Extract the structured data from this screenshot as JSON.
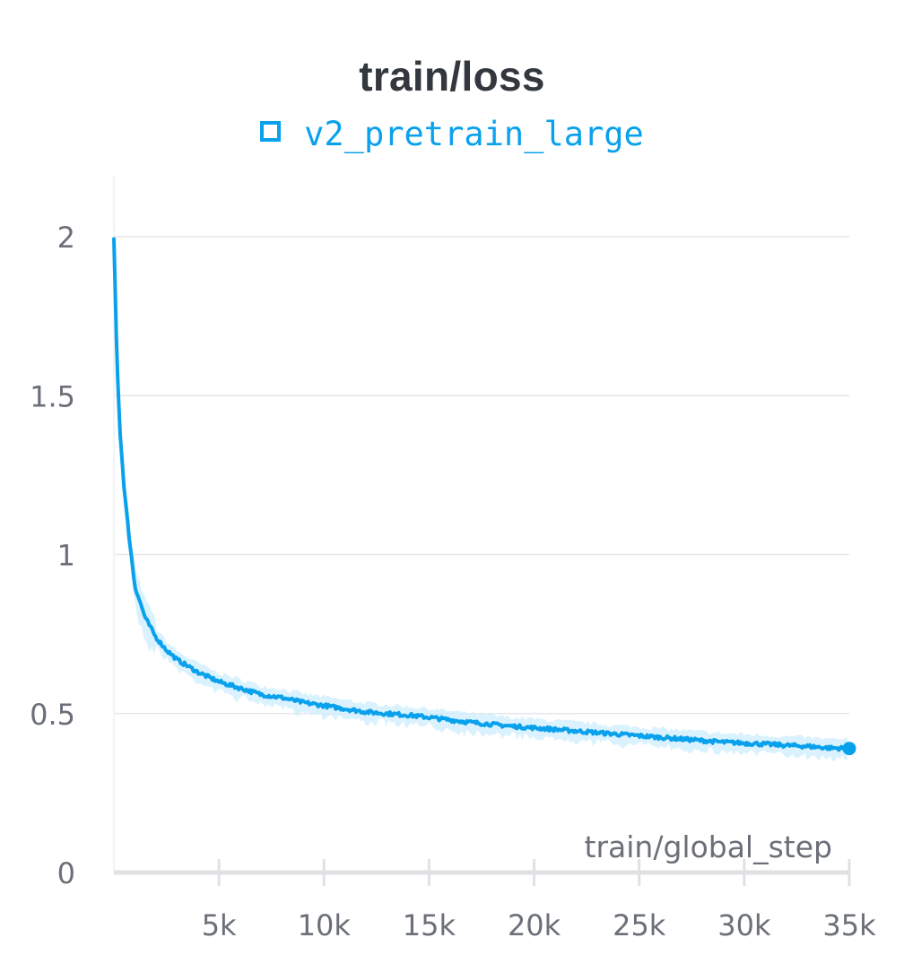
{
  "colors": {
    "series": "#0aa1ec",
    "series_band": "#cdeefc",
    "grid": "#e6e7ea",
    "axis": "#e0e1e4",
    "text": "#6b6f78",
    "title": "#33373e"
  },
  "chart_data": {
    "type": "line",
    "title": "train/loss",
    "xlabel": "train/global_step",
    "ylabel": "",
    "xlim": [
      0,
      35000
    ],
    "ylim": [
      0,
      2.2
    ],
    "x_ticks": [
      5000,
      10000,
      15000,
      20000,
      25000,
      30000,
      35000
    ],
    "x_tick_labels": [
      "5k",
      "10k",
      "15k",
      "20k",
      "25k",
      "30k",
      "35k"
    ],
    "y_ticks": [
      0,
      0.5,
      1,
      1.5,
      2
    ],
    "y_tick_labels": [
      "0",
      "0.5",
      "1",
      "1.5",
      "2"
    ],
    "grid": "horizontal",
    "legend_position": "top-center",
    "series": [
      {
        "name": "v2_pretrain_large",
        "x": [
          0,
          150,
          300,
          500,
          700,
          1000,
          1500,
          2000,
          2500,
          3000,
          3500,
          4000,
          5000,
          6000,
          7000,
          8000,
          9000,
          10000,
          11000,
          12000,
          13000,
          14000,
          15000,
          16000,
          17000,
          18000,
          19000,
          20000,
          21000,
          22000,
          23000,
          24000,
          25000,
          26000,
          27000,
          28000,
          29000,
          30000,
          31000,
          32000,
          33000,
          34000,
          35000
        ],
        "values": [
          1.99,
          1.6,
          1.38,
          1.2,
          1.07,
          0.9,
          0.8,
          0.74,
          0.7,
          0.67,
          0.65,
          0.63,
          0.6,
          0.58,
          0.56,
          0.55,
          0.535,
          0.525,
          0.515,
          0.505,
          0.5,
          0.495,
          0.488,
          0.48,
          0.472,
          0.466,
          0.46,
          0.455,
          0.45,
          0.445,
          0.44,
          0.435,
          0.43,
          0.425,
          0.42,
          0.415,
          0.41,
          0.407,
          0.404,
          0.4,
          0.397,
          0.392,
          0.39
        ]
      }
    ]
  }
}
